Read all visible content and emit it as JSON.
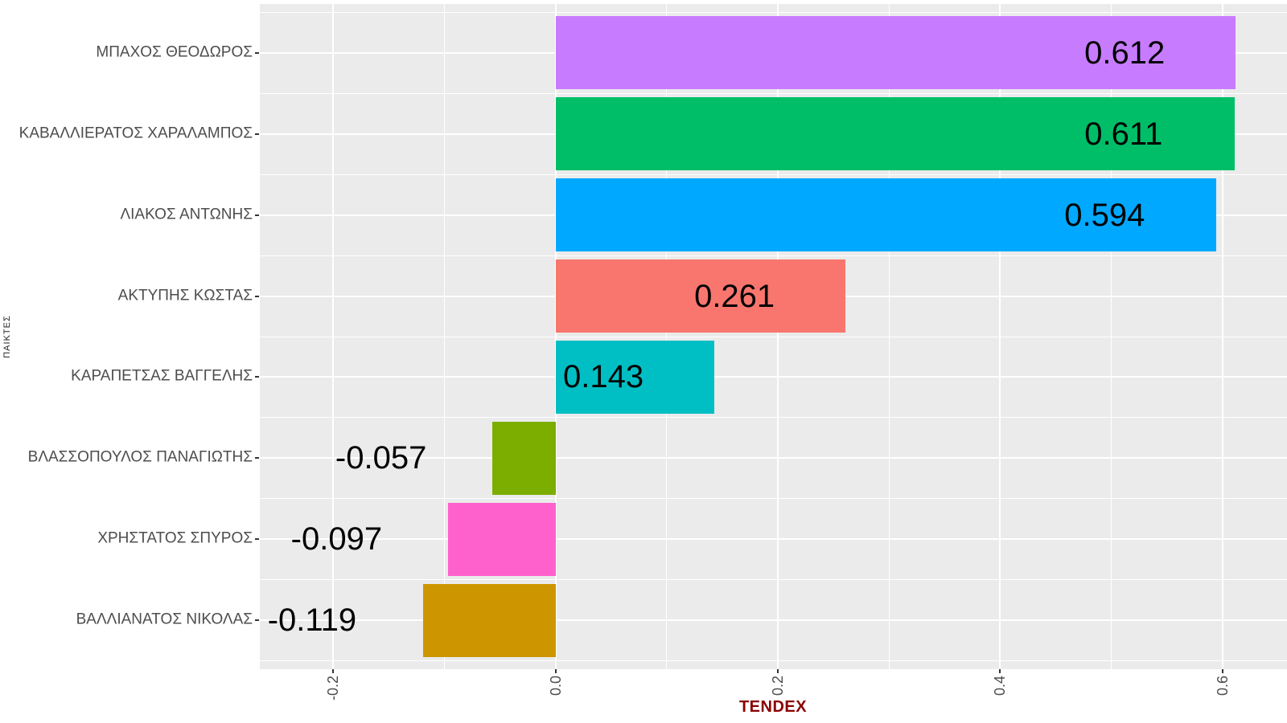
{
  "chart_data": {
    "type": "bar",
    "orientation": "horizontal",
    "title": "",
    "xlabel": "TENDEX",
    "ylabel": "ΠΑΙΚΤΕΣ",
    "categories": [
      "ΜΠΑΧΟΣ ΘΕΟΔΩΡΟΣ",
      "ΚΑΒΑΛΛΙΕΡΑΤΟΣ ΧΑΡΑΛΑΜΠΟΣ",
      "ΛΙΑΚΟΣ ΑΝΤΩΝΗΣ",
      "ΑΚΤΥΠΗΣ ΚΩΣΤΑΣ",
      "ΚΑΡΑΠΕΤΣΑΣ ΒΑΓΓΕΛΗΣ",
      "ΒΛΑΣΣΟΠΟΥΛΟΣ ΠΑΝΑΓΙΩΤΗΣ",
      "ΧΡΗΣΤΑΤΟΣ ΣΠΥΡΟΣ",
      "ΒΑΛΛΙΑΝΑΤΟΣ ΝΙΚΟΛΑΣ"
    ],
    "values": [
      0.612,
      0.611,
      0.594,
      0.261,
      0.143,
      -0.057,
      -0.097,
      -0.119
    ],
    "value_labels": [
      "0.612",
      "0.611",
      "0.594",
      "0.261",
      "0.143",
      "-0.057",
      "-0.097",
      "-0.119"
    ],
    "bar_colors": [
      "#C77CFF",
      "#00BE67",
      "#00A9FF",
      "#F8766D",
      "#00BFC4",
      "#7CAE00",
      "#FF61CC",
      "#CD9600"
    ],
    "xlim": [
      -0.266,
      0.658
    ],
    "x_major_ticks": [
      -0.2,
      0.0,
      0.2,
      0.4,
      0.6
    ],
    "x_tick_labels": [
      "-0.2",
      "0.0",
      "0.2",
      "0.4",
      "0.6"
    ],
    "x_minor_ticks": [
      -0.1,
      0.1,
      0.3,
      0.5
    ],
    "value_label_offset": -0.1,
    "grid": true,
    "legend": false,
    "panel_bg": "#EBEBEB",
    "grid_color": "#FFFFFF",
    "axis_text_color": "#4D4D4D",
    "xlabel_color": "#8B0000"
  }
}
